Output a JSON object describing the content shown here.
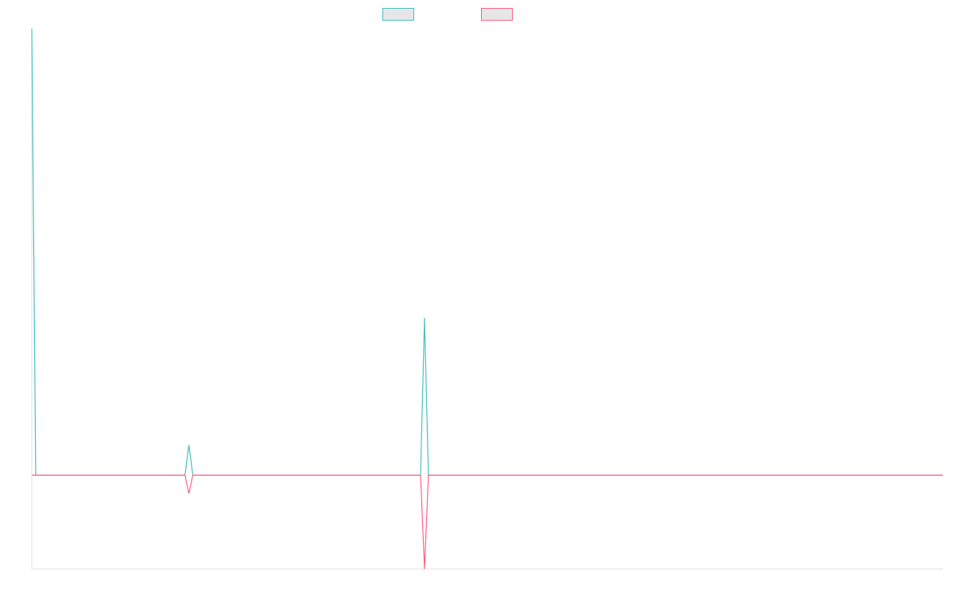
{
  "chart_data": {
    "type": "line",
    "x": [
      0,
      1,
      39,
      40,
      41,
      99,
      100,
      101,
      232
    ],
    "xlim": [
      0,
      232
    ],
    "ylim": [
      -118,
      562
    ],
    "series": [
      {
        "color": "#4bc0c0",
        "values": [
          562,
          0,
          0,
          38,
          0,
          0,
          198,
          0,
          0
        ]
      },
      {
        "color": "#ff6384",
        "values": [
          0,
          0,
          0,
          -23,
          0,
          0,
          -118,
          0,
          0
        ]
      }
    ]
  }
}
